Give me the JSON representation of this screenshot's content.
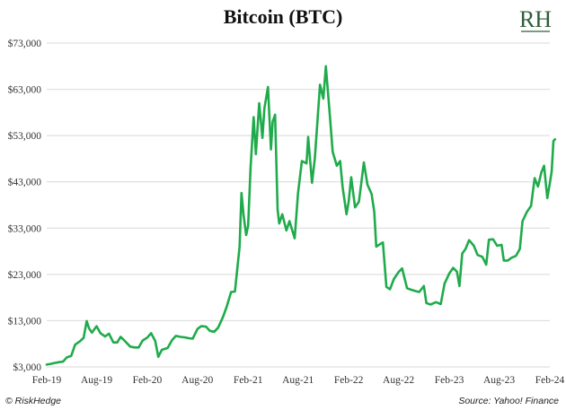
{
  "header": {
    "title": "Bitcoin (BTC)",
    "logo_text": "RH"
  },
  "footer": {
    "copyright": "© RiskHedge",
    "source": "Source: Yahoo! Finance"
  },
  "colors": {
    "line": "#1fab4b",
    "grid": "#d9d9d9",
    "logo": "#2f5d3a"
  },
  "chart_data": {
    "type": "line",
    "title": "Bitcoin (BTC)",
    "xlabel": "",
    "ylabel": "",
    "grid": true,
    "ylim": [
      3000,
      73000
    ],
    "y_ticks": [
      "$3,000",
      "$13,000",
      "$23,000",
      "$33,000",
      "$43,000",
      "$53,000",
      "$63,000",
      "$73,000"
    ],
    "y_tick_values": [
      3000,
      13000,
      23000,
      33000,
      43000,
      53000,
      63000,
      73000
    ],
    "x_ticks": [
      "Feb-19",
      "Aug-19",
      "Feb-20",
      "Aug-20",
      "Feb-21",
      "Aug-21",
      "Feb-22",
      "Aug-22",
      "Feb-23",
      "Aug-23",
      "Feb-24"
    ],
    "x_tick_dates": [
      "2019-02",
      "2019-08",
      "2020-02",
      "2020-08",
      "2021-02",
      "2021-08",
      "2022-02",
      "2022-08",
      "2023-02",
      "2023-08",
      "2024-02"
    ],
    "series": [
      {
        "x": [
          "2019-02-01",
          "2019-02-15",
          "2019-03-01",
          "2019-03-15",
          "2019-04-01",
          "2019-04-15",
          "2019-05-01",
          "2019-05-15",
          "2019-06-01",
          "2019-06-15",
          "2019-06-26",
          "2019-07-05",
          "2019-07-15",
          "2019-08-01",
          "2019-08-15",
          "2019-09-01",
          "2019-09-15",
          "2019-10-01",
          "2019-10-15",
          "2019-10-27",
          "2019-11-10",
          "2019-12-01",
          "2019-12-18",
          "2020-01-01",
          "2020-01-15",
          "2020-02-01",
          "2020-02-15",
          "2020-03-01",
          "2020-03-12",
          "2020-03-25",
          "2020-04-15",
          "2020-05-01",
          "2020-05-15",
          "2020-06-01",
          "2020-06-15",
          "2020-07-01",
          "2020-07-15",
          "2020-08-01",
          "2020-08-15",
          "2020-09-01",
          "2020-09-15",
          "2020-10-01",
          "2020-10-15",
          "2020-11-01",
          "2020-11-15",
          "2020-12-01",
          "2020-12-15",
          "2021-01-01",
          "2021-01-08",
          "2021-01-15",
          "2021-01-25",
          "2021-02-01",
          "2021-02-10",
          "2021-02-21",
          "2021-03-01",
          "2021-03-13",
          "2021-03-25",
          "2021-04-01",
          "2021-04-14",
          "2021-04-25",
          "2021-05-01",
          "2021-05-10",
          "2021-05-19",
          "2021-05-25",
          "2021-06-05",
          "2021-06-20",
          "2021-07-01",
          "2021-07-20",
          "2021-08-01",
          "2021-08-15",
          "2021-09-01",
          "2021-09-07",
          "2021-09-21",
          "2021-10-01",
          "2021-10-20",
          "2021-11-01",
          "2021-11-10",
          "2021-11-25",
          "2021-12-05",
          "2021-12-20",
          "2022-01-01",
          "2022-01-10",
          "2022-01-24",
          "2022-02-01",
          "2022-02-10",
          "2022-02-24",
          "2022-03-10",
          "2022-03-28",
          "2022-04-10",
          "2022-04-25",
          "2022-05-05",
          "2022-05-12",
          "2022-05-25",
          "2022-06-05",
          "2022-06-18",
          "2022-07-01",
          "2022-07-15",
          "2022-08-01",
          "2022-08-14",
          "2022-09-01",
          "2022-09-15",
          "2022-10-01",
          "2022-10-15",
          "2022-11-01",
          "2022-11-10",
          "2022-11-25",
          "2022-12-15",
          "2023-01-01",
          "2023-01-15",
          "2023-02-01",
          "2023-02-15",
          "2023-03-01",
          "2023-03-10",
          "2023-03-20",
          "2023-04-01",
          "2023-04-14",
          "2023-05-01",
          "2023-05-15",
          "2023-06-01",
          "2023-06-15",
          "2023-06-25",
          "2023-07-10",
          "2023-07-25",
          "2023-08-10",
          "2023-08-18",
          "2023-09-01",
          "2023-09-15",
          "2023-10-01",
          "2023-10-15",
          "2023-10-25",
          "2023-11-10",
          "2023-11-25",
          "2023-12-08",
          "2023-12-20",
          "2024-01-01",
          "2024-01-11",
          "2024-01-23",
          "2024-02-01",
          "2024-02-08",
          "2024-02-14",
          "2024-02-20"
        ],
        "values": [
          3500,
          3650,
          3850,
          4000,
          4150,
          5050,
          5400,
          7800,
          8500,
          9300,
          12900,
          11300,
          10400,
          11800,
          10300,
          9600,
          10200,
          8300,
          8300,
          9500,
          8700,
          7400,
          7200,
          7200,
          8700,
          9350,
          10300,
          8600,
          5200,
          6700,
          7100,
          8800,
          9700,
          9500,
          9400,
          9200,
          9100,
          11200,
          11800,
          11700,
          10800,
          10600,
          11500,
          13700,
          16000,
          19200,
          19300,
          29000,
          40600,
          36000,
          31500,
          33500,
          46000,
          57000,
          49000,
          60000,
          52500,
          58900,
          63500,
          50000,
          56000,
          57500,
          37000,
          34000,
          36000,
          32500,
          34500,
          30800,
          40500,
          47500,
          47000,
          52700,
          42800,
          48000,
          64000,
          61000,
          68000,
          57000,
          49500,
          46500,
          47500,
          41800,
          36000,
          38700,
          44000,
          37500,
          38700,
          47200,
          42400,
          40400,
          36500,
          29000,
          29500,
          29900,
          20300,
          19800,
          22000,
          23500,
          24300,
          20000,
          19700,
          19400,
          19200,
          20500,
          16800,
          16500,
          17000,
          16600,
          21000,
          23200,
          24400,
          23600,
          20500,
          27500,
          28500,
          30400,
          29200,
          27200,
          26800,
          25100,
          30500,
          30600,
          29200,
          29400,
          26000,
          26000,
          26600,
          27000,
          28500,
          34500,
          36500,
          37800,
          43800,
          42000,
          45000,
          46500,
          39500,
          42700,
          45300,
          51800,
          52200
        ]
      }
    ]
  }
}
